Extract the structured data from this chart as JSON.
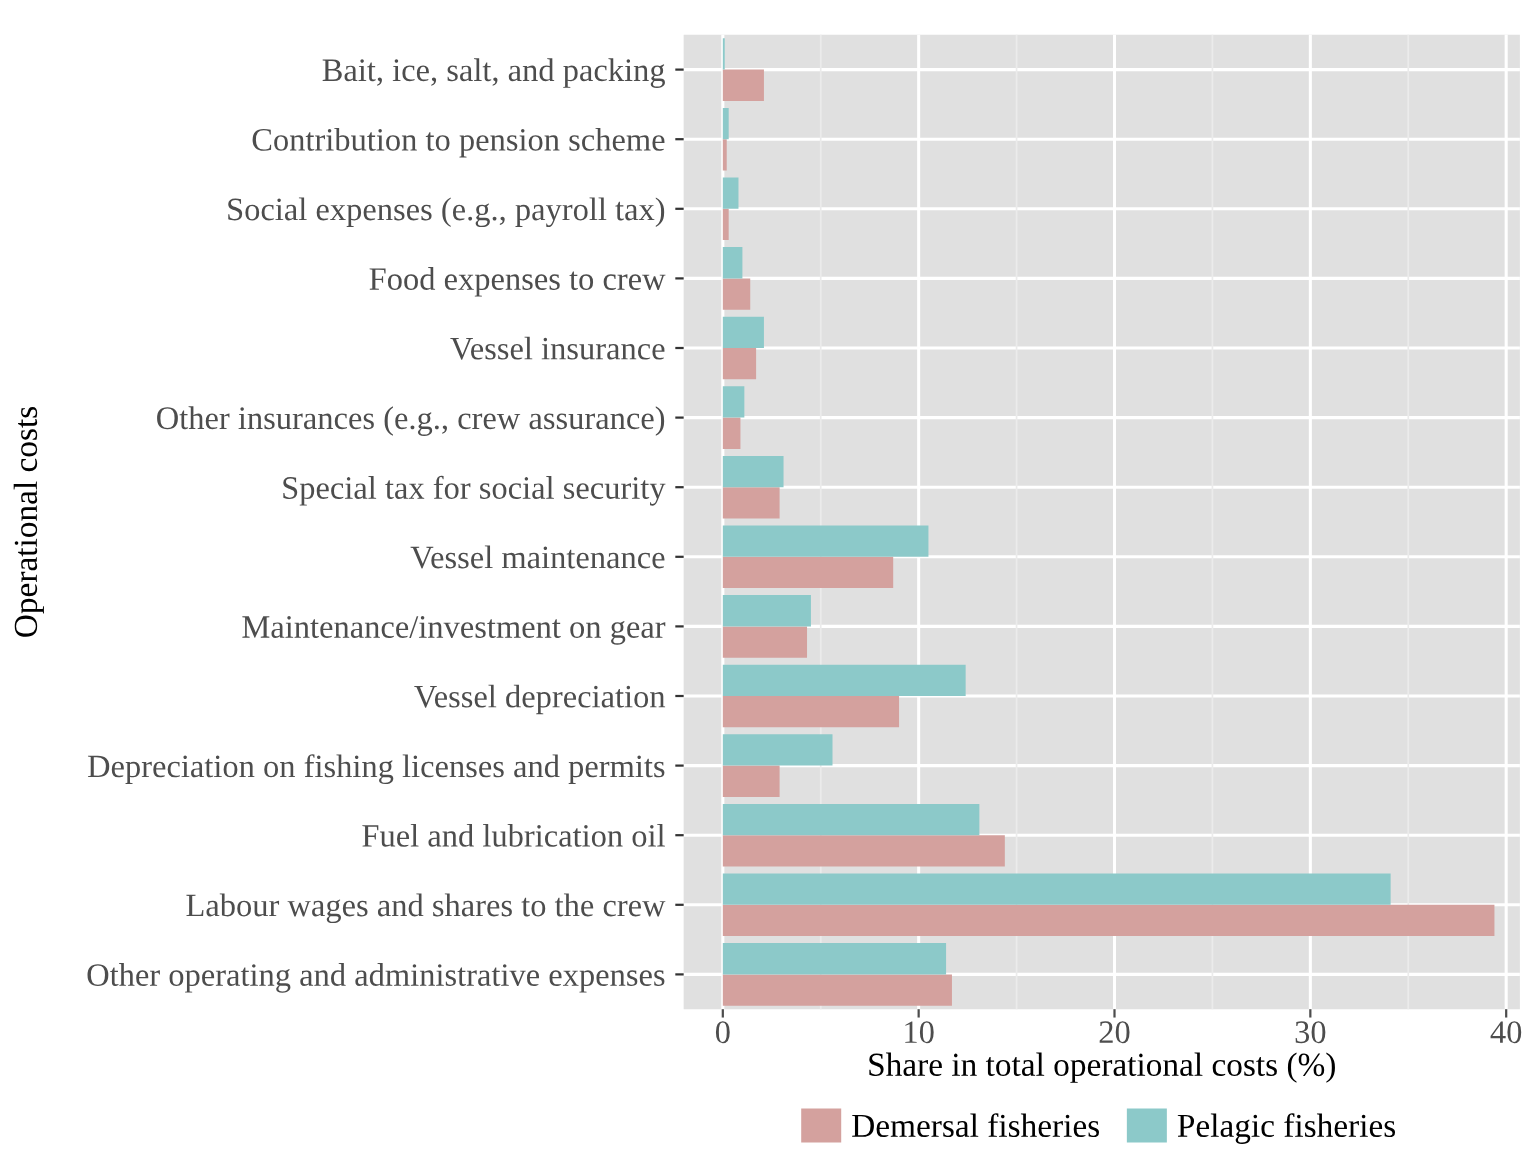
{
  "chart_data": {
    "type": "bar",
    "orientation": "horizontal",
    "xlabel": "Share in total operational costs (%)",
    "ylabel": "Operational costs",
    "categories": [
      "Bait, ice, salt, and packing",
      "Contribution to pension scheme",
      "Social expenses (e.g., payroll tax)",
      "Food expenses to crew",
      "Vessel insurance",
      "Other insurances (e.g., crew assurance)",
      "Special tax for social security",
      "Vessel maintenance",
      "Maintenance/investment on gear",
      "Vessel depreciation",
      "Depreciation on fishing licenses and permits",
      "Fuel and lubrication oil",
      "Labour wages and shares to the crew",
      "Other operating and administrative expenses"
    ],
    "series": [
      {
        "name": "Demersal fisheries",
        "color": "#d4a19e",
        "values": [
          2.1,
          0.2,
          0.3,
          1.4,
          1.7,
          0.9,
          2.9,
          8.7,
          4.3,
          9.0,
          2.9,
          14.4,
          39.4,
          11.7
        ]
      },
      {
        "name": "Pelagic fisheries",
        "color": "#8cc9c9",
        "values": [
          0.1,
          0.3,
          0.8,
          1.0,
          2.1,
          1.1,
          3.1,
          10.5,
          4.5,
          12.4,
          5.6,
          13.1,
          34.1,
          11.4
        ]
      }
    ],
    "xlim": [
      -2,
      40.7
    ],
    "xticks": [
      0,
      10,
      20,
      30,
      40
    ],
    "grid": true,
    "legend": "bottom"
  }
}
